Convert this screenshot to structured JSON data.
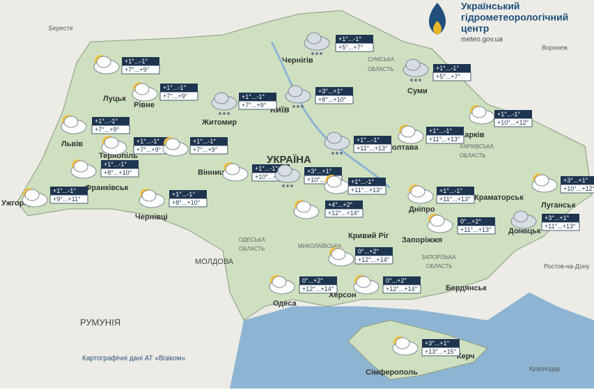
{
  "header": {
    "title_line1": "Український",
    "title_line2": "гідрометеорологічний",
    "title_line3": "центр",
    "url": "meteo.gov.ua"
  },
  "forecasts": [
    {
      "night": "+1°...-1°",
      "day": "+5°...+7°"
    },
    {
      "night": "+1°...-1°",
      "day": "+5°...+7°"
    },
    {
      "night": "+1°...-1°",
      "day": "+7°...+9°"
    },
    {
      "night": "+1°...-1°",
      "day": "+7°...+9°"
    },
    {
      "night": "+1°...-1°",
      "day": "+7°...+9°"
    },
    {
      "night": "+3°...+1°",
      "day": "+8°...+10°"
    },
    {
      "night": "+1°...-1°",
      "day": "+10°...+12°"
    },
    {
      "night": "+1°...-1°",
      "day": "+7°...+9°"
    },
    {
      "night": "+1°...-1°",
      "day": "+7°...+9°"
    },
    {
      "night": "+1°...-1°",
      "day": "+7°...+9°"
    },
    {
      "night": "+1°...-1°",
      "day": "+11°...+13°"
    },
    {
      "night": "+1°...-1°",
      "day": "+11°...+13°"
    },
    {
      "night": "+1°...-1°",
      "day": "+8°...+10°"
    },
    {
      "night": "+1°...-1°",
      "day": "+10°...+12°"
    },
    {
      "night": "+3°...+1°",
      "day": "+10°...+12°"
    },
    {
      "night": "+1°...-1°",
      "day": "+11°...+13°"
    },
    {
      "night": "+3°...+1°",
      "day": "+10°...+12°"
    },
    {
      "night": "+1°...-1°",
      "day": "+11°...+13°"
    },
    {
      "night": "+1°...-1°",
      "day": "+9°...+11°"
    },
    {
      "night": "+1°...-1°",
      "day": "+8°...+10°"
    },
    {
      "night": "+4°...+2°",
      "day": "+12°...+14°"
    },
    {
      "night": "0°...+2°",
      "day": "+11°...+13°"
    },
    {
      "night": "+3°...+1°",
      "day": "+11°...+13°"
    },
    {
      "night": "0°...+2°",
      "day": "+12°...+14°"
    },
    {
      "night": "0°...+2°",
      "day": "+12°...+14°"
    },
    {
      "night": "0°...+2°",
      "day": "+12°...+14°"
    },
    {
      "night": "+3°...+1°",
      "day": "+13°...+15°"
    }
  ],
  "places": [
    "Берестя",
    "Чернігів",
    "Воронеж",
    "Луцьк",
    "Рівне",
    "Житомир",
    "Київ",
    "Суми",
    "Львів",
    "Тернопіль",
    "Вінниця",
    "Полтава",
    "Харків",
    "Франківськ",
    "Ужгород",
    "Чернівці",
    "Дніпро",
    "Краматорськ",
    "Луганськ",
    "Кривий Ріг",
    "Запоріжжя",
    "Донецьк",
    "Ростов-на-Дону",
    "Одеса",
    "Херсон",
    "Бердянськ",
    "Керч",
    "Краснодар",
    "Сімферополь",
    "УКРАЇНА",
    "МОЛДОВА",
    "РУМУНІЯ",
    "СУМСЬКА",
    "ОБЛАСТЬ",
    "ХАРКІВСЬКА",
    "ОБЛАСТЬ",
    "ОДЕСЬКА",
    "ОБЛАСТЬ",
    "МИКОЛАЇВСЬКА",
    "ЗАПОРІЗЬКА",
    "ОБЛАСТЬ"
  ],
  "footer": "Картографічні дані АТ «Візіком»"
}
